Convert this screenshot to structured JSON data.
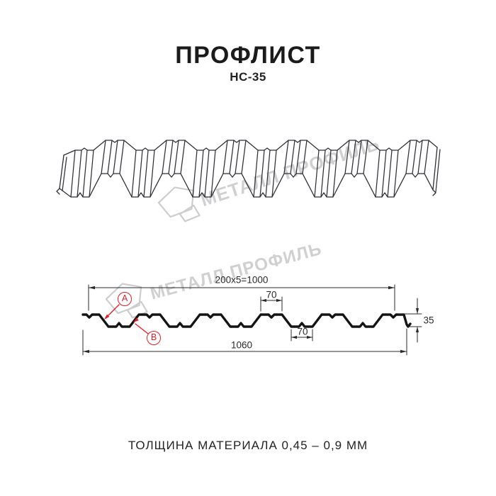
{
  "header": {
    "title": "ПРОФЛИСТ",
    "model": "НС-35"
  },
  "watermark": {
    "text": "МЕТАЛЛ ПРОФИЛЬ"
  },
  "section": {
    "dim_module": "200x5=1000",
    "dim_flange_top": "70",
    "dim_flange_bottom": "70",
    "dim_total_width": "1060",
    "dim_height": "35",
    "label_a": "А",
    "label_b": "В"
  },
  "footer": {
    "note": "ТОЛЩИНА МАТЕРИАЛА 0,45 – 0,9 ММ"
  },
  "colors": {
    "accent_red": "#e31e24",
    "drawing_line": "#2f2f36",
    "section_line": "#141414",
    "dimension_line": "#2b2b2b",
    "watermark_gray": "#cbcbcb",
    "background": "#ffffff"
  }
}
